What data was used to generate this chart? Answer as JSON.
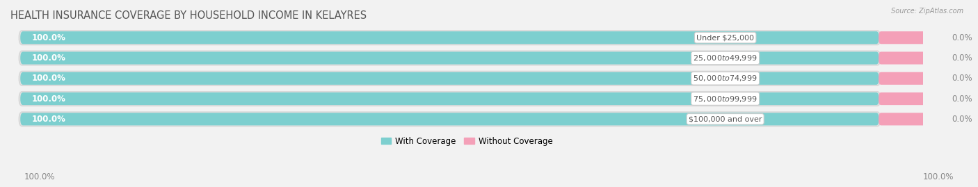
{
  "title": "HEALTH INSURANCE COVERAGE BY HOUSEHOLD INCOME IN KELAYRES",
  "source": "Source: ZipAtlas.com",
  "categories": [
    "Under $25,000",
    "$25,000 to $49,999",
    "$50,000 to $74,999",
    "$75,000 to $99,999",
    "$100,000 and over"
  ],
  "with_coverage": [
    100.0,
    100.0,
    100.0,
    100.0,
    100.0
  ],
  "without_coverage": [
    0.0,
    0.0,
    0.0,
    0.0,
    0.0
  ],
  "color_with": "#7dcfcf",
  "color_without": "#f4a0b8",
  "label_with": "With Coverage",
  "label_without": "Without Coverage",
  "bg_color": "#f2f2f2",
  "bar_container_color": "#e4e4e4",
  "bar_container_edge": "#d8d8d8",
  "title_fontsize": 10.5,
  "label_fontsize": 8.5,
  "tick_fontsize": 8.5,
  "bottom_left_label": "100.0%",
  "bottom_right_label": "100.0%",
  "without_pct_color": "#888888",
  "with_pct_color": "#ffffff",
  "cat_label_color": "#555555",
  "title_color": "#555555"
}
